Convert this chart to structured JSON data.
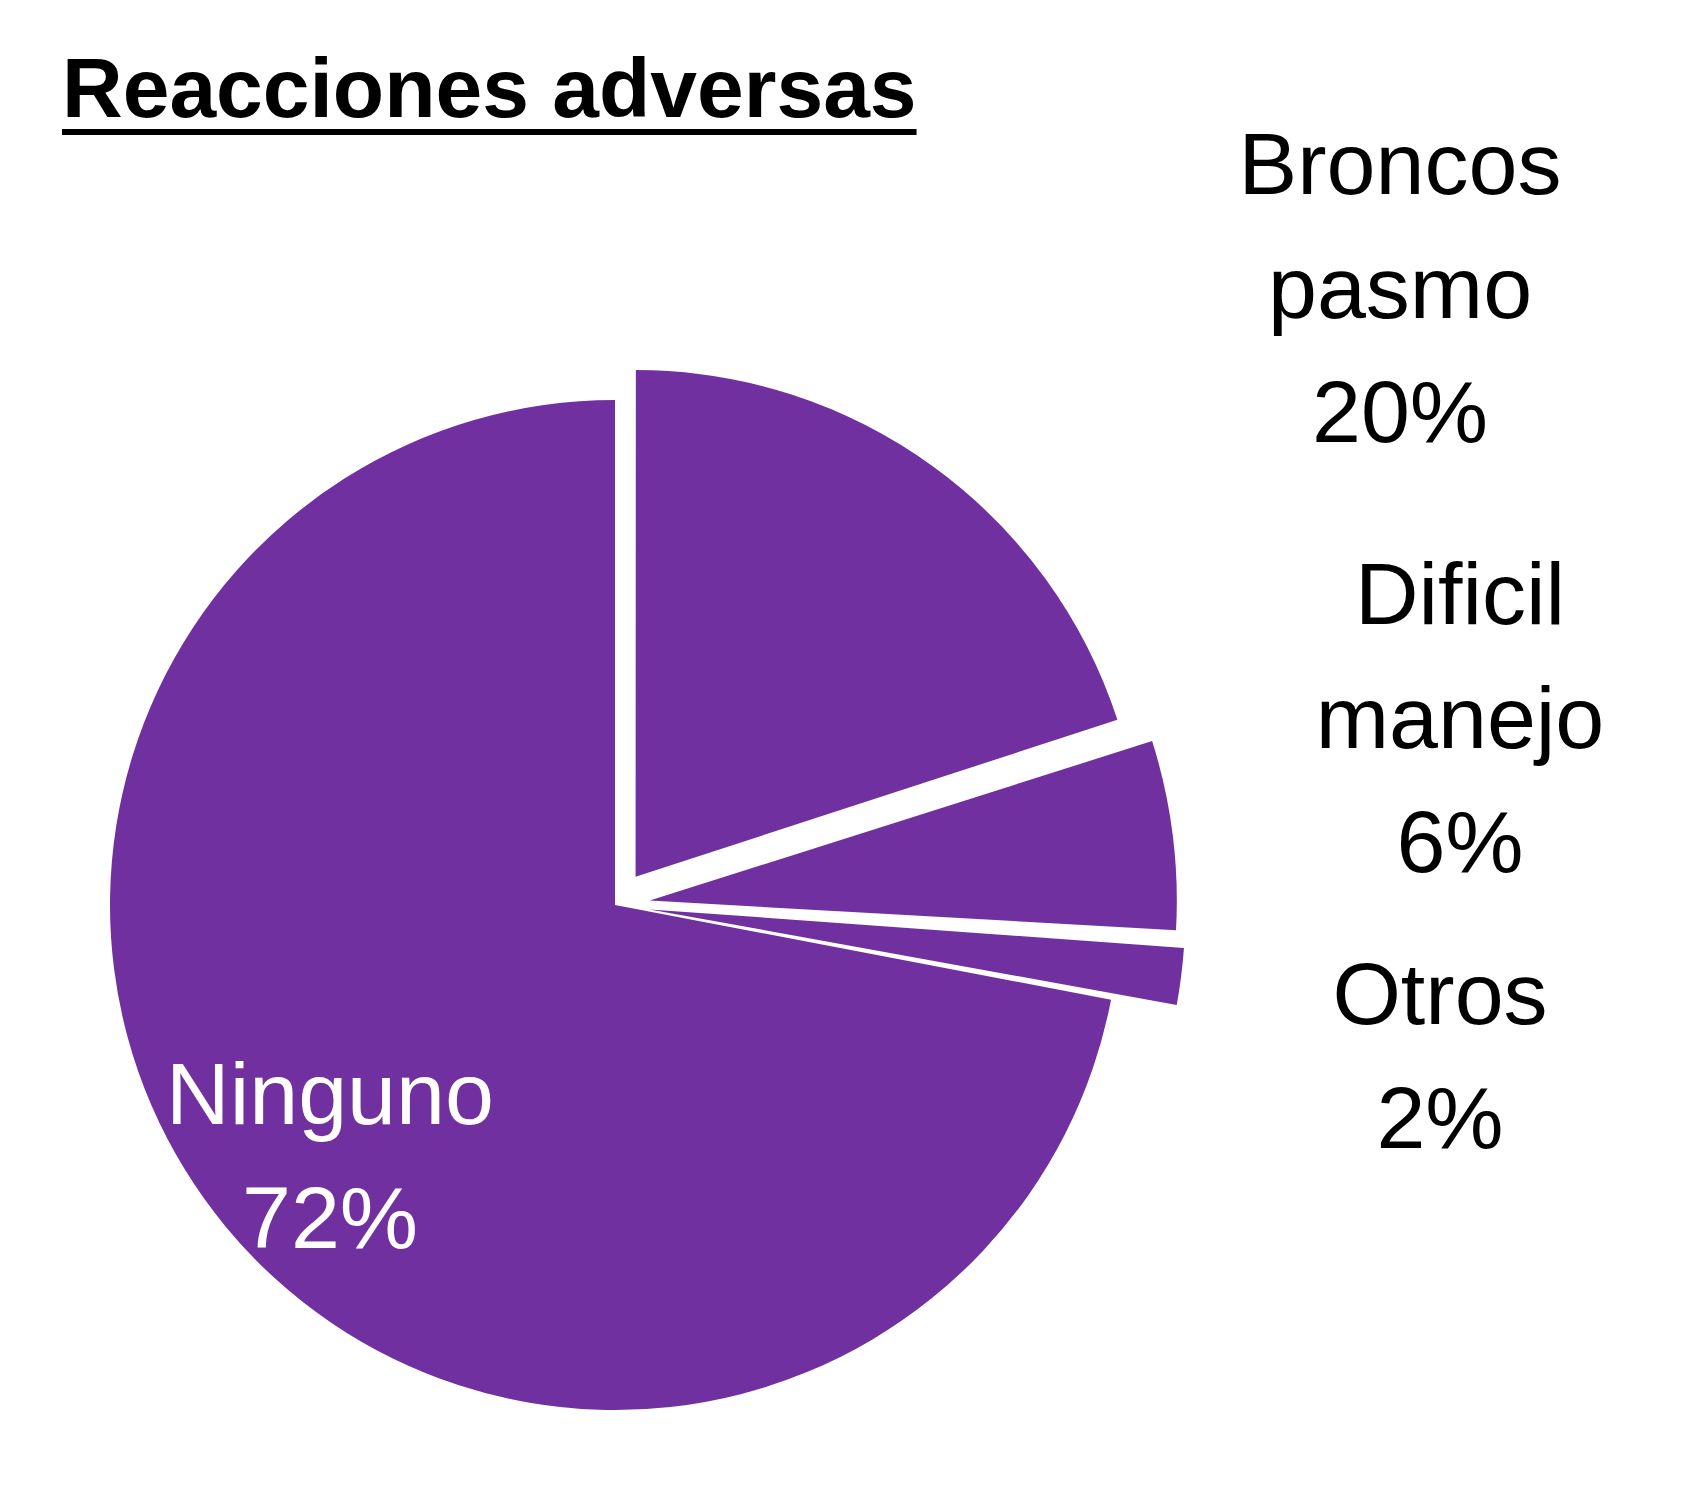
{
  "chart_data": {
    "type": "pie",
    "title": "Reacciones adversas",
    "categories": [
      "Broncos pasmo",
      "Dificil manejo",
      "Otros",
      "Ninguno"
    ],
    "values": [
      20,
      6,
      2,
      72
    ],
    "colors": [
      "#7030a0",
      "#7030a0",
      "#7030a0",
      "#7030a0"
    ],
    "value_labels": [
      "20%",
      "6%",
      "2%",
      "72%"
    ],
    "legend": false
  }
}
